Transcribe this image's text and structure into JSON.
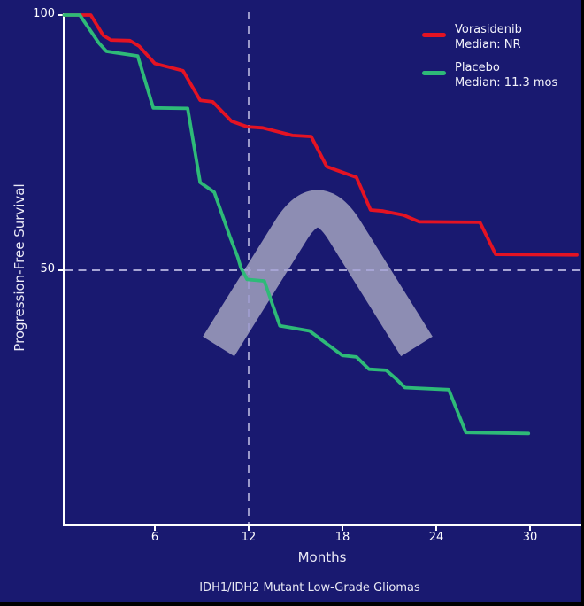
{
  "chart_data": {
    "type": "line",
    "subtype": "kaplan-meier-survival",
    "title": "",
    "xlabel": "Months",
    "ylabel": "Progression-Free Survival",
    "caption": "IDH1/IDH2 Mutant Low-Grade Gliomas",
    "xticks": [
      6,
      12,
      18,
      24,
      30
    ],
    "yticks": [
      100,
      50
    ],
    "xlim": [
      0,
      33.4
    ],
    "ylim": [
      0,
      100
    ],
    "grid": false,
    "legend_position": "top-right",
    "background_color": "#191970",
    "axis_color": "#ffffff",
    "reference_line_color": "#a6a4d4",
    "reference_lines": {
      "x": 12,
      "y": 50
    },
    "watermark_icon": "arch-logo-watermark",
    "watermark_color": "#8d8db3",
    "series": [
      {
        "name": "Vorasidenib",
        "median_label": "Median: NR",
        "color": "#e41323",
        "points": [
          [
            0.2,
            100
          ],
          [
            1.9,
            100
          ],
          [
            2.7,
            96.0
          ],
          [
            3.2,
            95.1
          ],
          [
            4.4,
            95.0
          ],
          [
            5.0,
            93.9
          ],
          [
            6.0,
            90.5
          ],
          [
            7.8,
            89.1
          ],
          [
            8.9,
            83.3
          ],
          [
            9.7,
            83.0
          ],
          [
            10.9,
            79.2
          ],
          [
            11.9,
            78.1
          ],
          [
            12.9,
            77.9
          ],
          [
            14.8,
            76.4
          ],
          [
            16.0,
            76.2
          ],
          [
            17.0,
            70.3
          ],
          [
            18.9,
            68.2
          ],
          [
            19.8,
            61.8
          ],
          [
            20.6,
            61.6
          ],
          [
            21.9,
            60.8
          ],
          [
            22.9,
            59.5
          ],
          [
            26.8,
            59.4
          ],
          [
            27.8,
            53.1
          ],
          [
            33.0,
            53.0
          ]
        ]
      },
      {
        "name": "Placebo",
        "median_label": "Median: 11.3 mos",
        "color": "#2eba78",
        "points": [
          [
            0.2,
            100
          ],
          [
            1.2,
            100
          ],
          [
            2.4,
            94.6
          ],
          [
            2.9,
            92.9
          ],
          [
            4.9,
            92.0
          ],
          [
            5.9,
            81.8
          ],
          [
            8.1,
            81.7
          ],
          [
            8.9,
            67.2
          ],
          [
            9.8,
            65.3
          ],
          [
            10.8,
            56.6
          ],
          [
            11.3,
            52.6
          ],
          [
            11.5,
            50.5
          ],
          [
            11.9,
            48.2
          ],
          [
            13.0,
            47.9
          ],
          [
            14.0,
            39.1
          ],
          [
            14.6,
            38.8
          ],
          [
            15.9,
            38.1
          ],
          [
            18.0,
            33.3
          ],
          [
            18.9,
            33.0
          ],
          [
            19.7,
            30.6
          ],
          [
            20.8,
            30.4
          ],
          [
            21.4,
            28.8
          ],
          [
            22.0,
            27.0
          ],
          [
            24.8,
            26.6
          ],
          [
            25.9,
            18.2
          ],
          [
            29.9,
            18.0
          ]
        ]
      }
    ]
  }
}
